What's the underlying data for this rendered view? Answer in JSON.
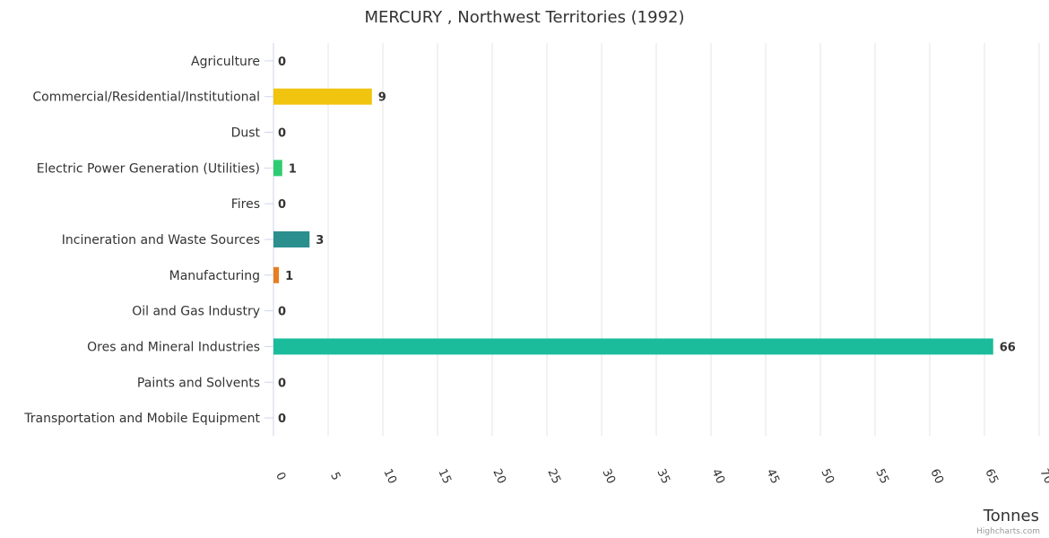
{
  "chart_data": {
    "type": "bar",
    "orientation": "horizontal",
    "title": "MERCURY , Northwest Territories (1992)",
    "xlabel": "Tonnes",
    "ylabel": "",
    "xlim": [
      0,
      70
    ],
    "x_ticks": [
      0,
      5,
      10,
      15,
      20,
      25,
      30,
      35,
      40,
      45,
      50,
      55,
      60,
      65,
      70
    ],
    "grid": true,
    "legend": "none",
    "categories": [
      "Agriculture",
      "Commercial/Residential/Institutional",
      "Dust",
      "Electric Power Generation (Utilities)",
      "Fires",
      "Incineration and Waste Sources",
      "Manufacturing",
      "Oil and Gas Industry",
      "Ores and Mineral Industries",
      "Paints and Solvents",
      "Transportation and Mobile Equipment"
    ],
    "values": [
      0,
      9.0,
      0,
      0.8,
      0,
      3.3,
      0.5,
      0,
      65.8,
      0,
      0
    ],
    "data_labels": [
      "0",
      "9",
      "0",
      "1",
      "0",
      "3",
      "1",
      "0",
      "66",
      "0",
      "0"
    ],
    "colors": [
      "#2b908f",
      "#f1c40f",
      "#2b908f",
      "#2ecc71",
      "#2b908f",
      "#2b8f8e",
      "#e67e22",
      "#2b908f",
      "#1abc9c",
      "#2b908f",
      "#2b908f"
    ]
  },
  "credit": "Highcharts.com"
}
